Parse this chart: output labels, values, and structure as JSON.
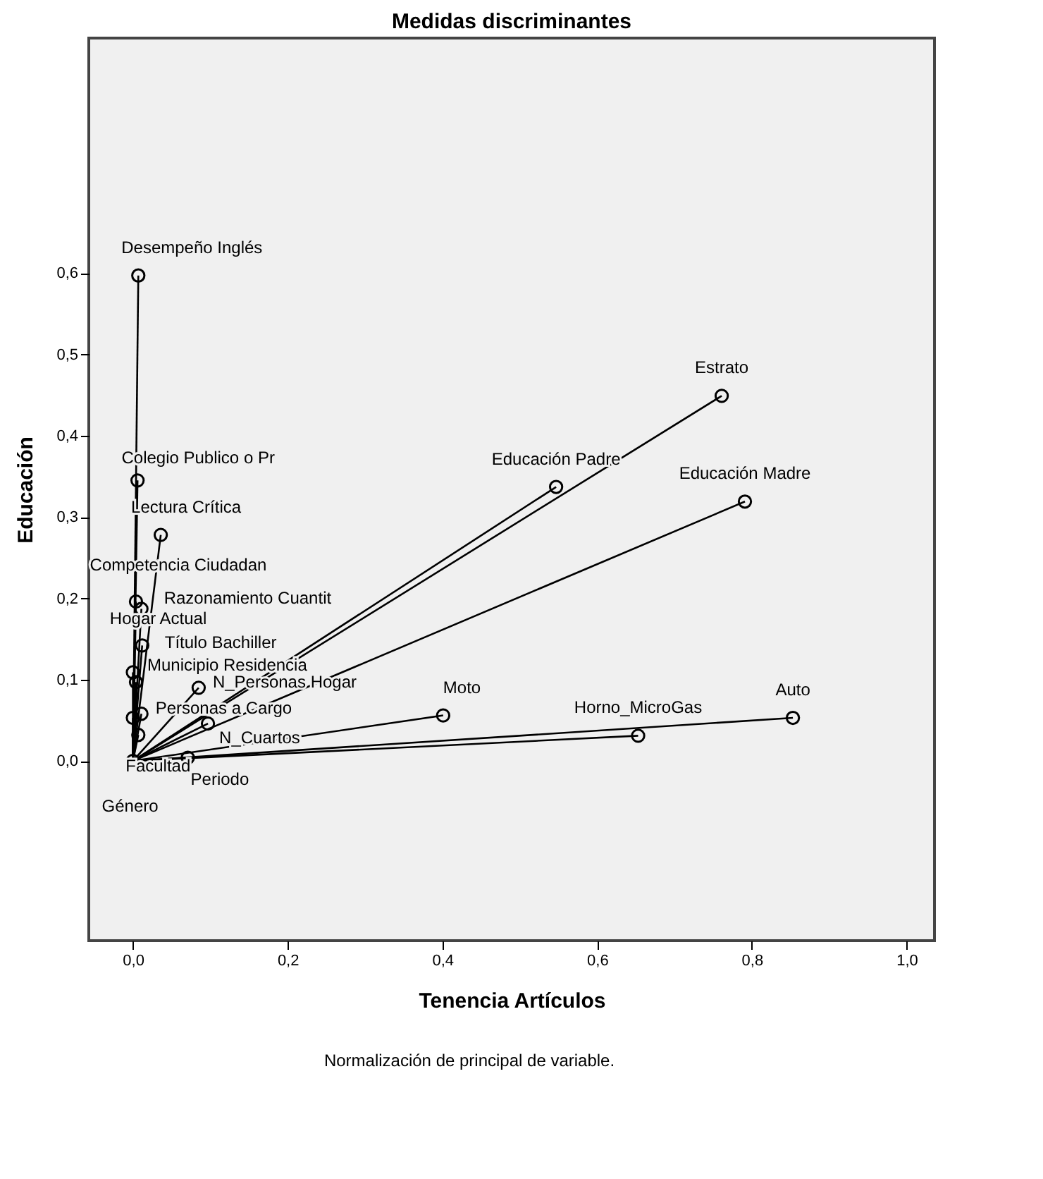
{
  "chart_data": {
    "type": "scatter",
    "title": "Medidas discriminantes",
    "xlabel": "Tenencia Artículos",
    "ylabel": "Educación",
    "x": [
      0.007,
      0.006,
      0.036,
      0.004,
      0.011,
      0.012,
      0.0,
      0.004,
      0.085,
      0.011,
      0.0,
      0.007,
      0.097,
      0.071,
      0.0,
      0.401,
      0.653,
      0.853,
      0.761,
      0.547,
      0.791
    ],
    "series": [
      {
        "color": "#000000",
        "values": [
          0.597,
          0.345,
          0.278,
          0.196,
          0.187,
          0.142,
          0.109,
          0.097,
          0.09,
          0.058,
          0.053,
          0.032,
          0.046,
          0.004,
          0.0,
          0.056,
          0.031,
          0.053,
          0.449,
          0.337,
          0.319
        ]
      }
    ],
    "marker": "circle",
    "line_style": "solid",
    "xlim": [
      -0.057,
      1.036
    ],
    "ylim": [
      -0.221,
      0.889
    ],
    "xticks": [
      {
        "value": 0,
        "label": "0,0"
      },
      {
        "value": 0.2,
        "label": "0,2"
      },
      {
        "value": 0.4,
        "label": "0,4"
      },
      {
        "value": 0.6,
        "label": "0,6"
      },
      {
        "value": 0.8,
        "label": "0,8"
      },
      {
        "value": 1.0,
        "label": "1,0"
      }
    ],
    "yticks": [
      {
        "value": 0,
        "label": "0,0"
      },
      {
        "value": 0.1,
        "label": "0,1"
      },
      {
        "value": 0.2,
        "label": "0,2"
      },
      {
        "value": 0.3,
        "label": "0,3"
      },
      {
        "value": 0.4,
        "label": "0,4"
      },
      {
        "value": 0.5,
        "label": "0,5"
      },
      {
        "value": 0.6,
        "label": "0,6"
      }
    ],
    "grid": false,
    "annotations": [
      {
        "text": "Desempeño Inglés",
        "x": 0.007,
        "y": 0.597
      },
      {
        "text": "Colegio Publico o Pr",
        "x": 0.006,
        "y": 0.345
      },
      {
        "text": "Lectura Crítica",
        "x": 0.036,
        "y": 0.278
      },
      {
        "text": "Competencia Ciudadan",
        "x": 0.004,
        "y": 0.196
      },
      {
        "text": "Razonamiento Cuantit",
        "x": 0.011,
        "y": 0.187
      },
      {
        "text": "Título Bachiller",
        "x": 0.012,
        "y": 0.142
      },
      {
        "text": "Hogar Actual",
        "x": 0.0,
        "y": 0.109
      },
      {
        "text": "Municipio Residencia",
        "x": 0.004,
        "y": 0.097
      },
      {
        "text": "N_Personas Hogar",
        "x": 0.085,
        "y": 0.09
      },
      {
        "text": "Personas a Cargo",
        "x": 0.011,
        "y": 0.058
      },
      {
        "text": "Facultad",
        "x": 0.007,
        "y": 0.032
      },
      {
        "text": "N_Cuartos",
        "x": 0.097,
        "y": 0.046
      },
      {
        "text": "Periodo",
        "x": 0.071,
        "y": 0.004
      },
      {
        "text": "Género",
        "x": 0.0,
        "y": 0.0
      },
      {
        "text": "Moto",
        "x": 0.401,
        "y": 0.056
      },
      {
        "text": "Horno_MicroGas",
        "x": 0.653,
        "y": 0.031
      },
      {
        "text": "Auto",
        "x": 0.853,
        "y": 0.053
      },
      {
        "text": "Estrato",
        "x": 0.761,
        "y": 0.449
      },
      {
        "text": "Educación Padre",
        "x": 0.547,
        "y": 0.337
      },
      {
        "text": "Educación Madre",
        "x": 0.791,
        "y": 0.319
      },
      "Normalización de principal de variable."
    ]
  }
}
